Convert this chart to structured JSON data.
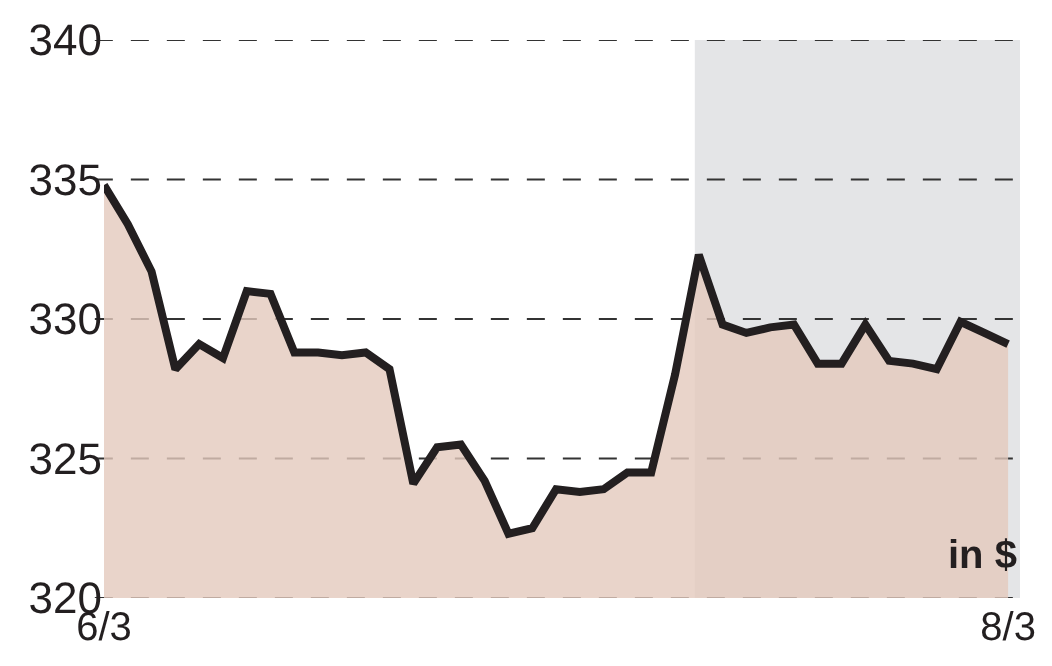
{
  "chart_data": {
    "type": "area",
    "categories": [
      "6/3",
      null,
      null,
      null,
      null,
      null,
      null,
      null,
      null,
      null,
      null,
      null,
      null,
      null,
      null,
      null,
      null,
      null,
      null,
      null,
      null,
      null,
      null,
      null,
      null,
      null,
      null,
      null,
      null,
      null,
      null,
      null,
      null,
      null,
      null,
      null,
      null,
      null,
      "8/3"
    ],
    "values": [
      334.8,
      333.4,
      331.7,
      328.2,
      329.1,
      328.6,
      331.0,
      330.9,
      328.8,
      328.8,
      328.7,
      328.8,
      328.2,
      324.1,
      325.4,
      325.5,
      324.2,
      322.3,
      322.5,
      323.9,
      323.8,
      323.9,
      324.5,
      324.5,
      328.0,
      332.3,
      329.8,
      329.5,
      329.7,
      329.8,
      328.4,
      328.4,
      329.8,
      328.5,
      328.4,
      328.2,
      329.9,
      329.5,
      329.1
    ],
    "color": "#e3c9bd",
    "ylim": [
      320,
      340
    ],
    "yticks": [
      320,
      325,
      330,
      335,
      340
    ],
    "grid": "y",
    "legend": false,
    "annotations": [
      "in $"
    ]
  }
}
